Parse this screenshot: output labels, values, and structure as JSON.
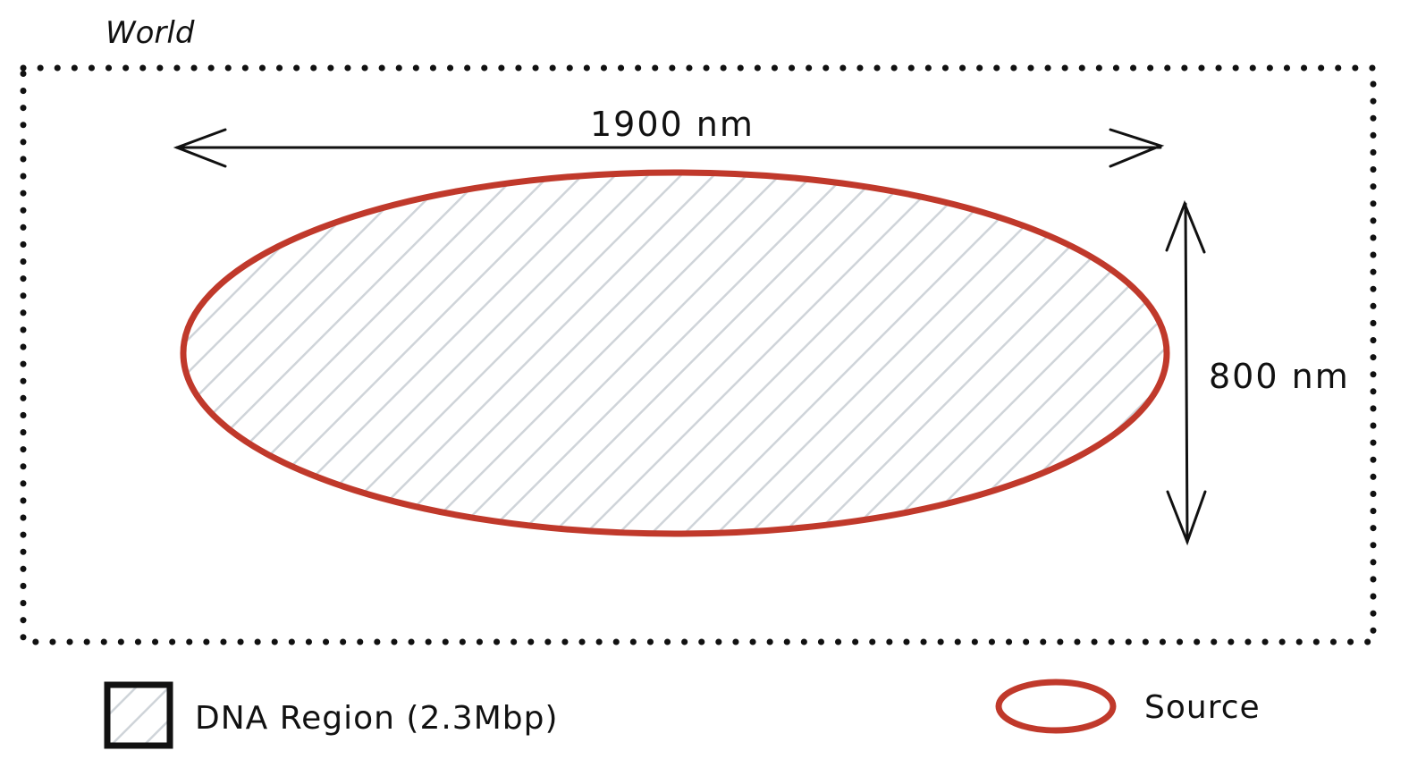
{
  "world": {
    "label": "World"
  },
  "dimensions": {
    "width_label": "1900 nm",
    "height_label": "800 nm"
  },
  "legend": {
    "dna_region_label": "DNA Region (2.3Mbp)",
    "source_label": "Source"
  },
  "colors": {
    "source_stroke": "#c0392b",
    "hatch": "#cfd4d9",
    "ink": "#111111"
  }
}
